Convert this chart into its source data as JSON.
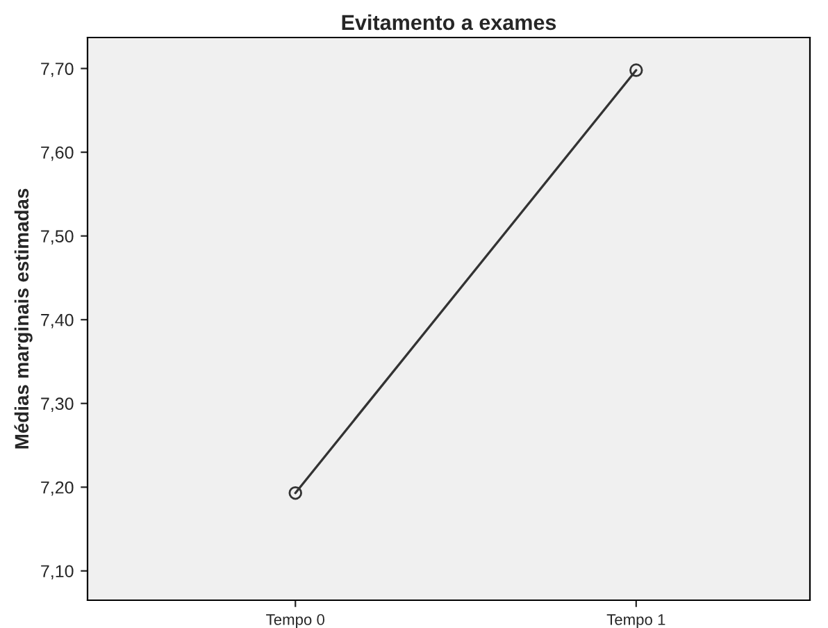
{
  "chart_data": {
    "type": "line",
    "title": "Evitamento a exames",
    "ylabel": "Médias marginais estimadas",
    "categories": [
      "Tempo 0",
      "Tempo 1"
    ],
    "series": [
      {
        "color": "#333333",
        "values": [
          7.193,
          7.698
        ]
      }
    ],
    "ylim": [
      7.065,
      7.737
    ],
    "yticks": [
      {
        "value": 7.1,
        "label": "7,10"
      },
      {
        "value": 7.2,
        "label": "7,20"
      },
      {
        "value": 7.3,
        "label": "7,30"
      },
      {
        "value": 7.4,
        "label": "7,40"
      },
      {
        "value": 7.5,
        "label": "7,50"
      },
      {
        "value": 7.6,
        "label": "7,60"
      },
      {
        "value": 7.7,
        "label": "7,70"
      }
    ],
    "marker": "circle",
    "line_style": "solid",
    "grid": false,
    "legend": false
  }
}
